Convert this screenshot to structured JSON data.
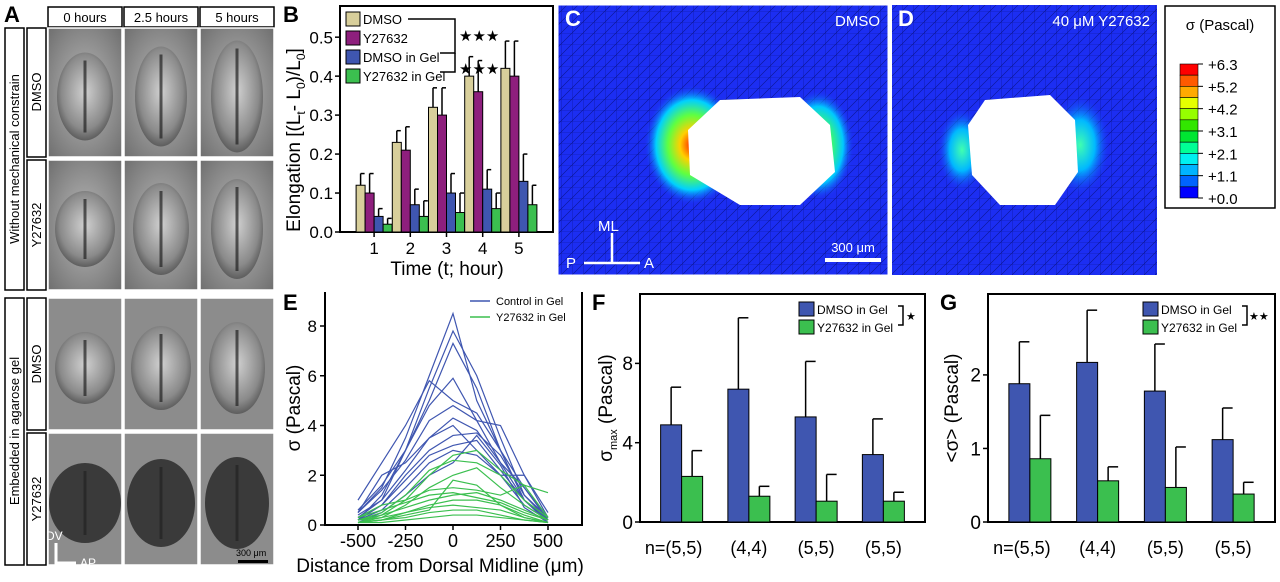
{
  "panel_a": {
    "label": "A",
    "columns": [
      "0 hours",
      "2.5 hours",
      "5 hours"
    ],
    "groups": [
      "Without mechanical constrain",
      "Embedded in agarose gel"
    ],
    "rows": [
      "DMSO",
      "Y27632",
      "DMSO",
      "Y27632"
    ],
    "axis_dv": "DV",
    "axis_ap": "AP",
    "scale_bar": "300 μm"
  },
  "panel_c": {
    "label": "C",
    "title": "DMSO",
    "axis_ml": "ML",
    "axis_p": "P",
    "axis_a": "A",
    "scale_bar": "300 μm"
  },
  "panel_d": {
    "label": "D",
    "title": "40 μM Y27632"
  },
  "colorbar": {
    "title": "σ (Pascal)",
    "ticks": [
      "+6.3",
      "+5.2",
      "+4.2",
      "+3.1",
      "+2.1",
      "+1.1",
      "+0.0"
    ],
    "colors": [
      "#ff0000",
      "#ff5a00",
      "#ffaa00",
      "#e6ff00",
      "#96ff00",
      "#32e600",
      "#00e632",
      "#00ff96",
      "#00f0f0",
      "#00b4ff",
      "#0064ff",
      "#0000ff"
    ]
  },
  "chart_data": [
    {
      "panel": "B",
      "type": "bar",
      "xlabel": "Time (t; hour)",
      "ylabel_parts": [
        "Elongation [(L",
        "t",
        "- L",
        "0",
        ")/L",
        "0",
        "]"
      ],
      "categories": [
        "1",
        "2",
        "3",
        "4",
        "5"
      ],
      "ylim": [
        0,
        0.58
      ],
      "yticks": [
        "0.0",
        "0.1",
        "0.2",
        "0.3",
        "0.4",
        "0.5"
      ],
      "significance": [
        "★★★",
        "★★★"
      ],
      "series": [
        {
          "name": "DMSO",
          "color": "#d8cf9b",
          "values": [
            0.12,
            0.23,
            0.32,
            0.4,
            0.42
          ],
          "err_top": [
            0.15,
            0.26,
            0.37,
            0.45,
            0.49
          ]
        },
        {
          "name": "Y27632",
          "color": "#8e1f7d",
          "values": [
            0.1,
            0.21,
            0.3,
            0.36,
            0.4
          ],
          "err_top": [
            0.15,
            0.27,
            0.37,
            0.44,
            0.49
          ]
        },
        {
          "name": "DMSO in Gel",
          "color": "#3f56b0",
          "values": [
            0.04,
            0.07,
            0.1,
            0.11,
            0.13
          ],
          "err_top": [
            0.06,
            0.11,
            0.15,
            0.16,
            0.2
          ]
        },
        {
          "name": "Y27632 in Gel",
          "color": "#3bbf4f",
          "values": [
            0.02,
            0.04,
            0.05,
            0.06,
            0.07
          ],
          "err_top": [
            0.035,
            0.08,
            0.1,
            0.1,
            0.12
          ]
        }
      ]
    },
    {
      "panel": "E",
      "type": "line",
      "xlabel": "Distance from Dorsal Midline (μm)",
      "ylabel": "σ (Pascal)",
      "xlim": [
        -600,
        650
      ],
      "ylim": [
        0,
        9.3
      ],
      "xticks": [
        "-500",
        "-250",
        "0",
        "250",
        "500"
      ],
      "yticks": [
        "0",
        "2",
        "4",
        "6",
        "8"
      ],
      "x": [
        -500,
        -375,
        -250,
        -125,
        0,
        125,
        250,
        375,
        500
      ],
      "series": [
        {
          "name": "Control in Gel",
          "color": "#3f56b0",
          "curves": [
            [
              0.5,
              1.5,
              3.5,
              6,
              8.5,
              5,
              3,
              1,
              0.2
            ],
            [
              0.3,
              1,
              3,
              5.5,
              7.8,
              6,
              3.5,
              1.2,
              0.2
            ],
            [
              0.2,
              1.2,
              3,
              5,
              7.3,
              5.5,
              3,
              1,
              0.1
            ],
            [
              1,
              2.5,
              4,
              5.8,
              5,
              4.5,
              3,
              1.5,
              0.3
            ],
            [
              0.6,
              1.6,
              3,
              4.8,
              5.9,
              4.2,
              2.5,
              1,
              0.2
            ],
            [
              0.5,
              1.4,
              2.6,
              4.2,
              4.8,
              4.2,
              4,
              2,
              0.5
            ],
            [
              0.4,
              1,
              2.2,
              3.5,
              4.3,
              3.8,
              2.5,
              1.5,
              0.2
            ],
            [
              0.3,
              0.8,
              2,
              3,
              3.6,
              3.7,
              2.8,
              1.2,
              0.3
            ],
            [
              0.2,
              0.8,
              1.8,
              2.8,
              3.2,
              3.4,
              2.2,
              1,
              0.2
            ],
            [
              0.5,
              2,
              2.5,
              3.5,
              4,
              3,
              2,
              2,
              0.3
            ],
            [
              0.2,
              0.6,
              1.5,
              2.5,
              3,
              2.8,
              2,
              0.8,
              0.2
            ],
            [
              0.1,
              0.5,
              1.2,
              2,
              2.5,
              3.6,
              2.4,
              0.7,
              0.1
            ]
          ]
        },
        {
          "name": "Y27632 in Gel",
          "color": "#3bbf4f",
          "curves": [
            [
              0.1,
              0.4,
              1,
              2,
              2.8,
              3,
              2.2,
              1.6,
              1.3
            ],
            [
              0.2,
              0.5,
              1.2,
              2.2,
              2.6,
              2.5,
              2,
              1,
              0.3
            ],
            [
              0.1,
              0.3,
              0.8,
              1.5,
              2,
              2.3,
              1.5,
              0.8,
              0.2
            ],
            [
              0.3,
              0.8,
              1,
              1.4,
              1.5,
              1.4,
              1.2,
              1.6,
              0.3
            ],
            [
              0.2,
              0.4,
              0.7,
              1,
              1.2,
              1.3,
              1,
              0.6,
              0.2
            ],
            [
              0.1,
              0.2,
              0.5,
              0.8,
              1,
              1,
              0.8,
              0.4,
              0.1
            ],
            [
              0.2,
              0.3,
              0.5,
              0.7,
              0.8,
              0.7,
              0.6,
              0.3,
              0.1
            ],
            [
              0.1,
              0.2,
              0.3,
              0.5,
              0.6,
              0.6,
              0.4,
              0.2,
              0.1
            ],
            [
              0.1,
              0.2,
              0.4,
              0.6,
              1.8,
              1.6,
              0.8,
              0.3,
              0.1
            ],
            [
              0.3,
              0.6,
              0.9,
              1.2,
              1.3,
              1.1,
              0.9,
              0.5,
              0.2
            ],
            [
              0.1,
              0.1,
              0.2,
              0.3,
              0.4,
              0.4,
              0.3,
              0.2,
              0.1
            ]
          ]
        }
      ]
    },
    {
      "panel": "F",
      "type": "bar",
      "ylabel_parts": [
        "σ",
        "max",
        " (Pascal)"
      ],
      "categories": [
        "n=(5,5)",
        "(4,4)",
        "(5,5)",
        "(5,5)"
      ],
      "ylim": [
        0,
        11.5
      ],
      "yticks": [
        "0",
        "4",
        "8"
      ],
      "significance": "★",
      "series": [
        {
          "name": "DMSO in Gel",
          "color": "#3f56b0",
          "values": [
            4.9,
            6.7,
            5.3,
            3.4
          ],
          "err_top": [
            6.8,
            10.3,
            8.1,
            5.2
          ]
        },
        {
          "name": "Y27632 in Gel",
          "color": "#3bbf4f",
          "values": [
            2.3,
            1.3,
            1.05,
            1.05
          ],
          "err_top": [
            3.6,
            1.8,
            2.4,
            1.5
          ]
        }
      ]
    },
    {
      "panel": "G",
      "type": "bar",
      "ylabel": "<σ> (Pascal)",
      "categories": [
        "n=(5,5)",
        "(4,4)",
        "(5,5)",
        "(5,5)"
      ],
      "ylim": [
        0,
        3.1
      ],
      "yticks": [
        "0",
        "1",
        "2"
      ],
      "significance": "★★",
      "series": [
        {
          "name": "DMSO in Gel",
          "color": "#3f56b0",
          "values": [
            1.88,
            2.17,
            1.78,
            1.12
          ],
          "err_top": [
            2.45,
            2.88,
            2.42,
            1.55
          ]
        },
        {
          "name": "Y27632 in Gel",
          "color": "#3bbf4f",
          "values": [
            0.86,
            0.56,
            0.47,
            0.38
          ],
          "err_top": [
            1.45,
            0.75,
            1.02,
            0.54
          ]
        }
      ]
    }
  ]
}
